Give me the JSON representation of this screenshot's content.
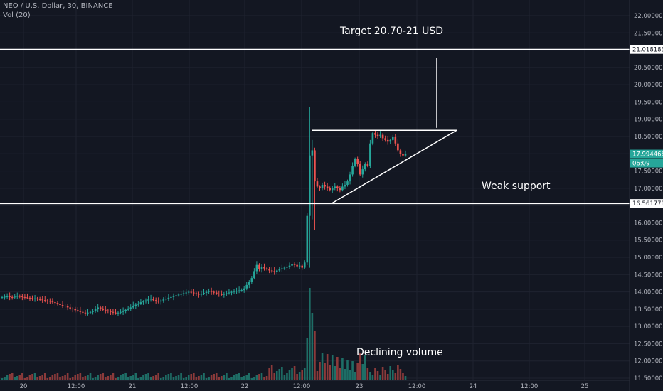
{
  "header": {
    "symbol_line": "NEO / U.S. Dollar, 30, BINANCE",
    "volume_line": "Vol (20)"
  },
  "chart_data": {
    "type": "candlestick",
    "symbol": "NEO / U.S. Dollar",
    "interval": "30",
    "exchange": "BINANCE",
    "y_axis": {
      "range": [
        11.5,
        22.3
      ],
      "ticks": [
        "22.000000",
        "21.500000",
        "21.000000",
        "20.500000",
        "20.000000",
        "19.500000",
        "19.000000",
        "18.500000",
        "18.000000",
        "17.500000",
        "17.000000",
        "16.500000",
        "16.000000",
        "15.500000",
        "15.000000",
        "14.500000",
        "14.000000",
        "13.500000",
        "13.000000",
        "12.500000",
        "12.000000",
        "11.500000"
      ]
    },
    "x_axis": {
      "ticks": [
        "20",
        "12:00",
        "21",
        "12:00",
        "22",
        "12:00",
        "23",
        "12:00",
        "24",
        "12:00",
        "25"
      ]
    },
    "price_labels": {
      "resistance": "21.018183",
      "current": "17.994466",
      "countdown": "06:09",
      "support": "16.561771"
    },
    "horizontal_levels": [
      {
        "name": "resistance",
        "price": 21.018183
      },
      {
        "name": "support",
        "price": 16.561771
      },
      {
        "name": "current",
        "price": 17.994466
      }
    ],
    "annotations": [
      {
        "text": "Target 20.70-21 USD"
      },
      {
        "text": "Weak support"
      },
      {
        "text": "Declining volume"
      }
    ],
    "trendlines": [
      {
        "name": "triangle-top",
        "from": [
          "2020-01-22T14:00",
          18.68
        ],
        "to": [
          "2020-01-23T19:30",
          18.68
        ]
      },
      {
        "name": "triangle-bottom",
        "from": [
          "2020-01-22T15:00",
          16.56
        ],
        "to": [
          "2020-01-23T19:30",
          18.68
        ]
      },
      {
        "name": "target-projection",
        "from": [
          "2020-01-23T15:30",
          18.75
        ],
        "to": [
          "2020-01-23T15:30",
          20.78
        ]
      }
    ],
    "candles_close": [
      13.85,
      13.86,
      13.87,
      13.85,
      13.84,
      13.86,
      13.88,
      13.87,
      13.85,
      13.84,
      13.83,
      13.82,
      13.8,
      13.81,
      13.79,
      13.78,
      13.76,
      13.75,
      13.74,
      13.72,
      13.7,
      13.68,
      13.66,
      13.62,
      13.6,
      13.58,
      13.55,
      13.52,
      13.5,
      13.47,
      13.45,
      13.42,
      13.4,
      13.38,
      13.4,
      13.42,
      13.45,
      13.5,
      13.55,
      13.52,
      13.48,
      13.46,
      13.44,
      13.42,
      13.4,
      13.38,
      13.4,
      13.42,
      13.45,
      13.48,
      13.52,
      13.55,
      13.6,
      13.63,
      13.66,
      13.7,
      13.72,
      13.75,
      13.78,
      13.8,
      13.76,
      13.74,
      13.72,
      13.75,
      13.78,
      13.8,
      13.83,
      13.85,
      13.88,
      13.9,
      13.92,
      13.94,
      13.96,
      13.98,
      14.0,
      13.98,
      13.96,
      13.94,
      13.92,
      13.95,
      13.97,
      14.0,
      14.02,
      14.0,
      13.98,
      13.95,
      13.93,
      13.92,
      13.94,
      13.96,
      13.98,
      14.0,
      14.02,
      14.03,
      14.04,
      14.05,
      14.1,
      14.2,
      14.3,
      14.4,
      14.6,
      14.78,
      14.65,
      14.72,
      14.68,
      14.66,
      14.62,
      14.6,
      14.58,
      14.62,
      14.65,
      14.68,
      14.7,
      14.73,
      14.76,
      14.8,
      14.78,
      14.74,
      14.76,
      14.7,
      14.85,
      16.2,
      17.95,
      18.1,
      17.2,
      17.05,
      17.0,
      17.1,
      17.05,
      17.0,
      16.95,
      17.0,
      17.05,
      17.0,
      16.95,
      17.05,
      17.1,
      17.2,
      17.4,
      17.65,
      17.85,
      17.7,
      17.4,
      17.55,
      17.7,
      17.65,
      18.3,
      18.6,
      18.55,
      18.5,
      18.55,
      18.45,
      18.4,
      18.35,
      18.4,
      18.48,
      18.3,
      18.1,
      18.0,
      17.95,
      17.99
    ],
    "volume_note": "Volume spikes on the breakout candle and declines afterward"
  }
}
